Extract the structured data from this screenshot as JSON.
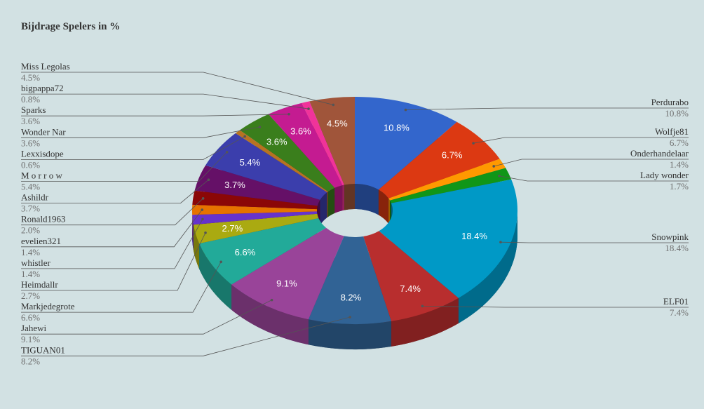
{
  "chart_data": {
    "type": "pie",
    "title": "Bijdrage Spelers in %",
    "slices": [
      {
        "name": "Perdurabo",
        "value": 10.8,
        "label": "10.8%",
        "color": "#3366cc"
      },
      {
        "name": "Wolfje81",
        "value": 6.7,
        "label": "6.7%",
        "color": "#dc3912"
      },
      {
        "name": "Onderhandelaar",
        "value": 1.4,
        "label": "1.4%",
        "color": "#ff9900"
      },
      {
        "name": "Lady wonder",
        "value": 1.7,
        "label": "1.7%",
        "color": "#109618"
      },
      {
        "name": "Snowpink",
        "value": 18.4,
        "label": "18.4%",
        "color": "#0099c6"
      },
      {
        "name": "ELF01",
        "value": 7.4,
        "label": "7.4%",
        "color": "#b82e2e"
      },
      {
        "name": "TIGUAN01",
        "value": 8.2,
        "label": "8.2%",
        "color": "#316395"
      },
      {
        "name": "Jahewi",
        "value": 9.1,
        "label": "9.1%",
        "color": "#994499"
      },
      {
        "name": "Markjedegrote",
        "value": 6.6,
        "label": "6.6%",
        "color": "#22aa99"
      },
      {
        "name": "Heimdallr",
        "value": 2.7,
        "label": "2.7%",
        "color": "#aaaa11"
      },
      {
        "name": "whistler",
        "value": 1.4,
        "label": "1.4%",
        "color": "#6633cc"
      },
      {
        "name": "evelien321",
        "value": 1.4,
        "label": "1.4%",
        "color": "#e67300"
      },
      {
        "name": "Ronald1963",
        "value": 2.0,
        "label": "2.0%",
        "color": "#8b0707"
      },
      {
        "name": "Ashildr",
        "value": 3.7,
        "label": "3.7%",
        "color": "#651067"
      },
      {
        "name": "M o r r o w",
        "value": 5.4,
        "label": "5.4%",
        "color": "#3b3eac"
      },
      {
        "name": "Lexxisdope",
        "value": 0.6,
        "label": "0.6%",
        "color": "#b77322"
      },
      {
        "name": "Wonder Nar",
        "value": 3.6,
        "label": "3.6%",
        "color": "#3a7e1c"
      },
      {
        "name": "Sparks",
        "value": 3.6,
        "label": "3.6%",
        "color": "#c41b91"
      },
      {
        "name": "bigpappa72",
        "value": 0.8,
        "label": "0.8%",
        "color": "#f0339a"
      },
      {
        "name": "Miss Legolas",
        "value": 4.5,
        "label": "4.5%",
        "color": "#a0553a"
      }
    ],
    "legend": "sides"
  }
}
